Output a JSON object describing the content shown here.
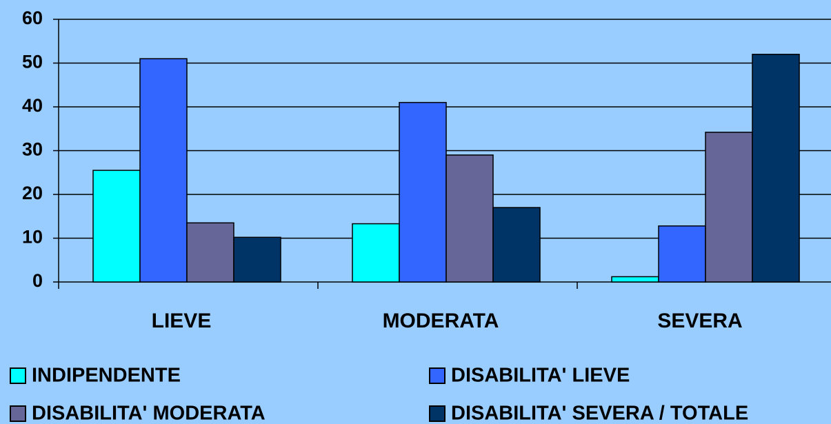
{
  "chart_data": {
    "type": "bar",
    "categories": [
      "LIEVE",
      "MODERATA",
      "SEVERA"
    ],
    "series": [
      {
        "name": "INDIPENDENTE",
        "color": "#00ffff",
        "values": [
          25.5,
          13.3,
          1.2
        ]
      },
      {
        "name": "DISABILITA' LIEVE",
        "color": "#3366ff",
        "values": [
          51,
          41,
          12.8
        ]
      },
      {
        "name": "DISABILITA' MODERATA",
        "color": "#666699",
        "values": [
          13.5,
          29,
          34.2
        ]
      },
      {
        "name": "DISABILITA' SEVERA / TOTALE",
        "color": "#003366",
        "values": [
          10.2,
          17,
          52
        ]
      }
    ],
    "ylim": [
      0,
      60
    ],
    "yticks": [
      0,
      10,
      20,
      30,
      40,
      50,
      60
    ],
    "grid": true,
    "legend": "bottom"
  }
}
